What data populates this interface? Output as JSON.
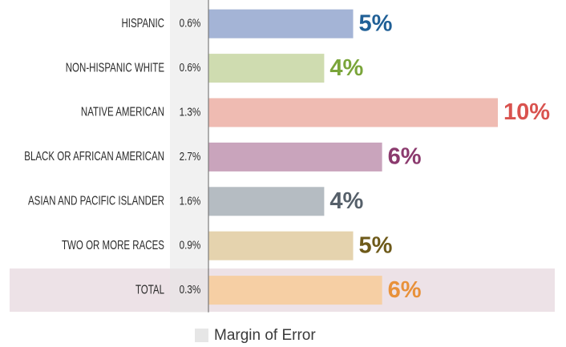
{
  "chart_data": {
    "type": "bar",
    "orientation": "horizontal",
    "categories": [
      "HISPANIC",
      "NON-HISPANIC WHITE",
      "NATIVE AMERICAN",
      "BLACK OR AFRICAN AMERICAN",
      "ASIAN AND PACIFIC ISLANDER",
      "TWO OR MORE RACES",
      "TOTAL"
    ],
    "values": [
      5,
      4,
      10,
      6,
      4,
      5,
      6
    ],
    "value_labels": [
      "5%",
      "4%",
      "10%",
      "6%",
      "4%",
      "5%",
      "6%"
    ],
    "colors": [
      "#a4b4d6",
      "#cfdcb0",
      "#efbbb2",
      "#c9a4bc",
      "#b5bcc2",
      "#e5d3ae",
      "#f6cfa4"
    ],
    "label_colors": [
      "#1f5f96",
      "#7aa53a",
      "#d9534f",
      "#8b3a6e",
      "#56606a",
      "#6e5a1a",
      "#e8913a"
    ],
    "margin_of_error": {
      "name": "Margin of Error",
      "color": "#e6e6e6",
      "values": [
        0.6,
        0.6,
        1.3,
        2.7,
        1.6,
        0.9,
        0.3
      ],
      "value_labels": [
        "0.6%",
        "0.6%",
        "1.3%",
        "2.7%",
        "1.6%",
        "0.9%",
        "0.3%"
      ]
    },
    "highlight_category": "TOTAL",
    "highlight_color": "#ede2e7"
  }
}
